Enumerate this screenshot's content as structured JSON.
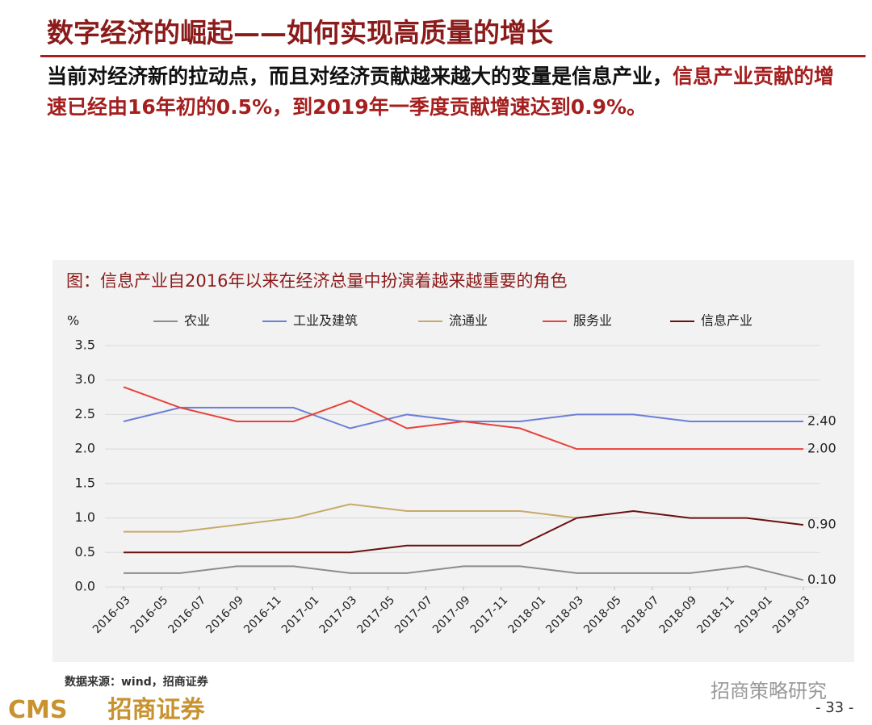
{
  "header": {
    "title": "数字经济的崛起——如何实现高质量的增长"
  },
  "paragraph": [
    "当前对经济新的拉动点，而且对经济贡献越来越大的变量是信息产业，",
    "信息产业贡献的增速已经由16年初的0.5%，到2019年一季度贡献增速达到0.9%。"
  ],
  "chart_data": {
    "type": "line",
    "title": "图：信息产业自2016年以来在经济总量中扮演着越来越重要的角色",
    "y_label": "%",
    "x": [
      "2016-03",
      "2016-06",
      "2016-09",
      "2016-12",
      "2017-03",
      "2017-06",
      "2017-09",
      "2017-12",
      "2018-03",
      "2018-06",
      "2018-09",
      "2018-12",
      "2019-03"
    ],
    "xlim": [
      "2016-03",
      "2019-03"
    ],
    "xticks": [
      "2016-03",
      "2016-05",
      "2016-07",
      "2016-09",
      "2016-11",
      "2017-01",
      "2017-03",
      "2017-05",
      "2017-07",
      "2017-09",
      "2017-11",
      "2018-01",
      "2018-03",
      "2018-05",
      "2018-07",
      "2018-09",
      "2018-11",
      "2019-01",
      "2019-03"
    ],
    "ylim": [
      0,
      3.5
    ],
    "yticks": [
      {
        "value": 0,
        "label": "0.0"
      },
      {
        "value": 0.5,
        "label": "0.5"
      },
      {
        "value": 1,
        "label": "1.0"
      },
      {
        "value": 1.5,
        "label": "1.5"
      },
      {
        "value": 2,
        "label": "2.0"
      },
      {
        "value": 2.5,
        "label": "2.5"
      },
      {
        "value": 3,
        "label": "3.0"
      },
      {
        "value": 3.5,
        "label": "3.5"
      }
    ],
    "grid": true,
    "series": [
      {
        "name": "农业",
        "color": "#8c8c8c",
        "values": [
          0.2,
          0.2,
          0.3,
          0.3,
          0.2,
          0.2,
          0.3,
          0.3,
          0.2,
          0.2,
          0.2,
          0.3,
          0.1
        ],
        "value_labels": [
          null,
          null,
          null,
          null,
          null,
          null,
          null,
          null,
          null,
          null,
          null,
          null,
          "0.10"
        ]
      },
      {
        "name": "工业及建筑",
        "color": "#6b7fd7",
        "values": [
          2.4,
          2.6,
          2.6,
          2.6,
          2.3,
          2.5,
          2.4,
          2.4,
          2.5,
          2.5,
          2.4,
          2.4,
          2.4
        ],
        "value_labels": [
          null,
          null,
          null,
          null,
          null,
          null,
          null,
          null,
          null,
          null,
          null,
          null,
          "2.40"
        ]
      },
      {
        "name": "流通业",
        "color": "#c8a96a",
        "values": [
          0.8,
          0.8,
          0.9,
          1.0,
          1.2,
          1.1,
          1.1,
          1.1,
          1.0,
          null,
          null,
          null,
          null
        ]
      },
      {
        "name": "服务业",
        "color": "#e8413a",
        "values": [
          2.9,
          2.6,
          2.4,
          2.4,
          2.7,
          2.3,
          2.4,
          2.3,
          2.0,
          2.0,
          2.0,
          2.0,
          2.0
        ],
        "value_labels": [
          null,
          null,
          null,
          null,
          null,
          null,
          null,
          null,
          null,
          null,
          null,
          null,
          "2.00"
        ]
      },
      {
        "name": "信息产业",
        "color": "#6b1010",
        "values": [
          0.5,
          0.5,
          0.5,
          0.5,
          0.5,
          0.6,
          0.6,
          0.6,
          1.0,
          1.1,
          1.0,
          1.0,
          0.9
        ],
        "value_labels": [
          null,
          null,
          null,
          null,
          null,
          null,
          null,
          null,
          null,
          null,
          null,
          null,
          "0.90"
        ]
      }
    ]
  },
  "footer": {
    "source": "数据来源：wind，招商证券",
    "logo_latin": "CMS",
    "logo_cn": "招商证券",
    "watermark": "招商策略研究",
    "page": "- 33 -"
  }
}
